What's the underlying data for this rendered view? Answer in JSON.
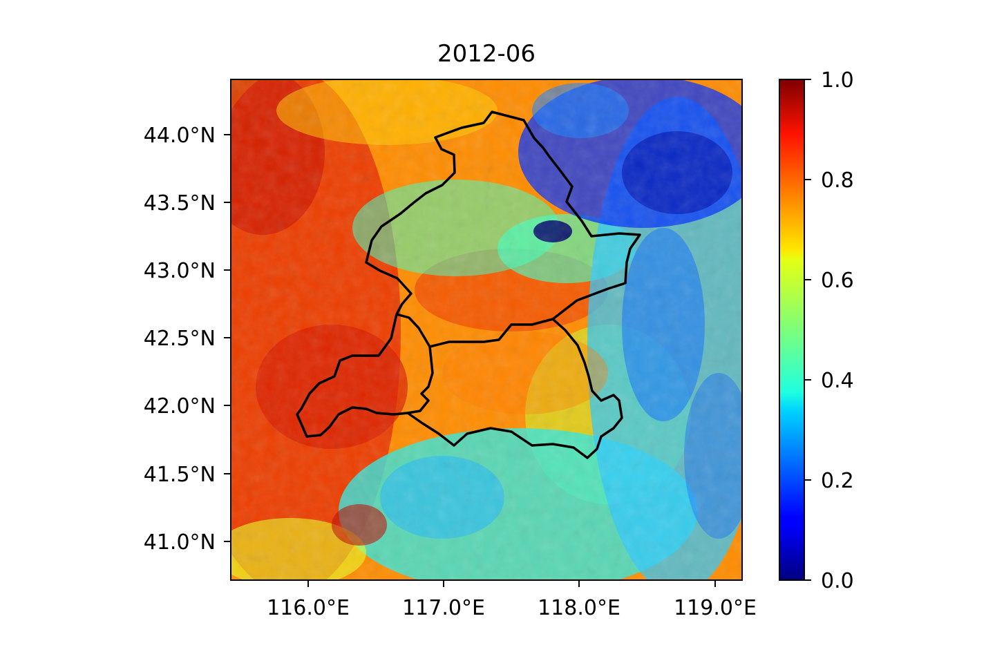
{
  "title": "2012-06",
  "map": {
    "x_ticks": [
      "116.0°E",
      "117.0°E",
      "118.0°E",
      "119.0°E"
    ],
    "y_ticks": [
      "44.0°N",
      "43.5°N",
      "43.0°N",
      "42.5°N",
      "42.0°N",
      "41.5°N",
      "41.0°N"
    ],
    "lon_range": [
      115.42,
      119.18
    ],
    "lat_range": [
      40.72,
      44.4
    ],
    "boundary_color": "#000000"
  },
  "colorbar": {
    "colormap": "jet",
    "range": [
      0.0,
      1.0
    ],
    "ticks": [
      "1.0",
      "0.8",
      "0.6",
      "0.4",
      "0.2",
      "0.0"
    ]
  }
}
